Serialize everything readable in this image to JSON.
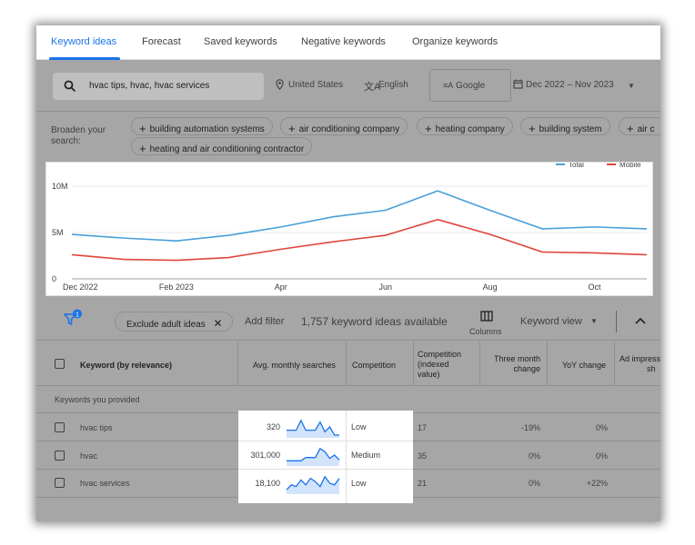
{
  "tabs": [
    "Keyword ideas",
    "Forecast",
    "Saved keywords",
    "Negative keywords",
    "Organize keywords"
  ],
  "search": {
    "value": "hvac tips, hvac, hvac services"
  },
  "location": "United States",
  "language": "English",
  "network": "Google",
  "date_range": "Dec 2022 – Nov 2023",
  "broaden": {
    "label": "Broaden your search:",
    "chips": [
      "building automation systems",
      "air conditioning company",
      "heating company",
      "building system",
      "air c",
      "heating and air conditioning contractor"
    ]
  },
  "chart_data": {
    "type": "line",
    "categories": [
      "Dec 2022",
      "Jan 2023",
      "Feb 2023",
      "Mar 2023",
      "Apr 2023",
      "May 2023",
      "Jun 2023",
      "Jul 2023",
      "Aug 2023",
      "Sep 2023",
      "Oct 2023",
      "Nov 2023"
    ],
    "x_tick_labels": [
      "Dec 2022",
      "Feb 2023",
      "Apr",
      "Jun",
      "Aug",
      "Oct"
    ],
    "y_tick_labels": [
      "10M",
      "5M",
      "0"
    ],
    "ylim": [
      0,
      10000000
    ],
    "legend": [
      "Total",
      "Mobile"
    ],
    "legend_position": "top-right",
    "series": [
      {
        "name": "Total",
        "color": "#4a9fd9",
        "values": [
          4800000,
          4400000,
          4100000,
          4700000,
          5600000,
          6700000,
          7400000,
          9500000,
          7400000,
          5400000,
          5600000,
          5400000
        ]
      },
      {
        "name": "Mobile",
        "color": "#e0453a",
        "values": [
          2600000,
          2100000,
          2000000,
          2300000,
          3200000,
          4000000,
          4700000,
          6400000,
          4800000,
          2900000,
          2800000,
          2600000
        ]
      }
    ],
    "grid": true
  },
  "toolbar": {
    "filter_badge": "1",
    "exclude_adult": "Exclude adult ideas",
    "add_filter": "Add filter",
    "ideas_count": "1,757 keyword ideas available",
    "columns": "Columns",
    "keyword_view": "Keyword view"
  },
  "table": {
    "headers": {
      "keyword": "Keyword (by relevance)",
      "avg_searches": "Avg. monthly searches",
      "competition": "Competition",
      "competition_indexed_1": "Competition",
      "competition_indexed_2": "(indexed",
      "competition_indexed_3": "value)",
      "three_month_1": "Three month",
      "three_month_2": "change",
      "yoy": "YoY change",
      "ad_impr_1": "Ad impress",
      "ad_impr_2": "sh"
    },
    "group_label": "Keywords you provided",
    "rows": [
      {
        "keyword": "hvac tips",
        "avg": "320",
        "competition": "Low",
        "index": "17",
        "three_month": "-19%",
        "yoy": "0%",
        "trend": [
          0.3,
          0.3,
          0.3,
          0.9,
          0.3,
          0.3,
          0.3,
          0.8,
          0.2,
          0.5,
          0.0,
          0.0
        ]
      },
      {
        "keyword": "hvac",
        "avg": "301,000",
        "competition": "Medium",
        "index": "35",
        "three_month": "0%",
        "yoy": "0%",
        "trend": [
          0.15,
          0.15,
          0.15,
          0.15,
          0.35,
          0.35,
          0.35,
          0.9,
          0.7,
          0.3,
          0.5,
          0.2
        ]
      },
      {
        "keyword": "hvac services",
        "avg": "18,100",
        "competition": "Low",
        "index": "21",
        "three_month": "0%",
        "yoy": "+22%",
        "trend": [
          0.1,
          0.4,
          0.3,
          0.7,
          0.4,
          0.8,
          0.6,
          0.3,
          0.9,
          0.5,
          0.4,
          0.8
        ]
      }
    ]
  }
}
